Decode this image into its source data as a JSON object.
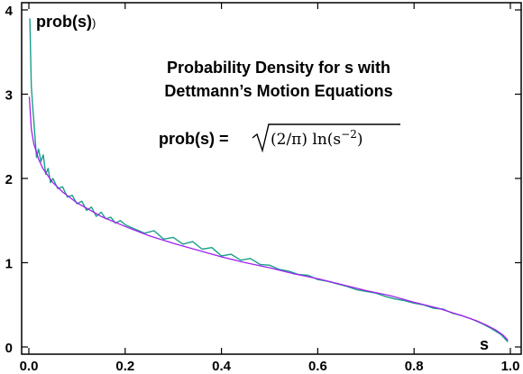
{
  "chart_data": {
    "type": "line",
    "title_lines": [
      "Probability Density for s with",
      "Dettmann’s Motion Equations"
    ],
    "formula": {
      "lhs": "prob(s) =",
      "radicand": "(2/π) ln(s",
      "exponent": "−2",
      "close": ")"
    },
    "ylabel": "prob(s)",
    "ylabel_end": ")",
    "xlabel": "s",
    "xlim": [
      0.0,
      1.0
    ],
    "ylim": [
      0,
      4
    ],
    "x_ticks": [
      "0.0",
      "0.2",
      "0.4",
      "0.6",
      "0.8",
      "1.0"
    ],
    "y_ticks": [
      "0",
      "1",
      "2",
      "3",
      "4"
    ],
    "grid": false,
    "series": [
      {
        "kind": "analytic",
        "color": "#a020f0",
        "x": [
          0.001,
          0.005,
          0.01,
          0.02,
          0.03,
          0.05,
          0.07,
          0.1,
          0.15,
          0.2,
          0.25,
          0.3,
          0.35,
          0.4,
          0.45,
          0.5,
          0.55,
          0.6,
          0.65,
          0.7,
          0.75,
          0.8,
          0.85,
          0.9,
          0.93,
          0.95,
          0.97,
          0.985,
          0.995
        ],
        "y": [
          2.97,
          2.59,
          2.42,
          2.23,
          2.11,
          1.95,
          1.84,
          1.71,
          1.55,
          1.43,
          1.32,
          1.23,
          1.15,
          1.07,
          1.0,
          0.94,
          0.87,
          0.81,
          0.74,
          0.67,
          0.61,
          0.53,
          0.46,
          0.37,
          0.31,
          0.26,
          0.2,
          0.14,
          0.08
        ]
      },
      {
        "kind": "simulated",
        "color": "#1a9e8a",
        "x": [
          0.002,
          0.005,
          0.008,
          0.012,
          0.016,
          0.02,
          0.025,
          0.03,
          0.035,
          0.04,
          0.045,
          0.05,
          0.06,
          0.07,
          0.08,
          0.09,
          0.1,
          0.11,
          0.12,
          0.13,
          0.14,
          0.15,
          0.16,
          0.17,
          0.18,
          0.19,
          0.2,
          0.22,
          0.24,
          0.26,
          0.28,
          0.3,
          0.32,
          0.34,
          0.36,
          0.38,
          0.4,
          0.42,
          0.44,
          0.46,
          0.48,
          0.5,
          0.52,
          0.54,
          0.56,
          0.58,
          0.6,
          0.62,
          0.64,
          0.66,
          0.68,
          0.7,
          0.72,
          0.74,
          0.76,
          0.78,
          0.8,
          0.82,
          0.84,
          0.86,
          0.88,
          0.9,
          0.92,
          0.94,
          0.96,
          0.98,
          0.995
        ],
        "y": [
          3.9,
          3.1,
          2.85,
          2.55,
          2.25,
          2.35,
          2.2,
          2.28,
          2.05,
          2.12,
          1.95,
          2.0,
          1.88,
          1.9,
          1.78,
          1.8,
          1.7,
          1.73,
          1.62,
          1.66,
          1.55,
          1.6,
          1.52,
          1.54,
          1.47,
          1.5,
          1.45,
          1.4,
          1.35,
          1.38,
          1.28,
          1.3,
          1.22,
          1.25,
          1.16,
          1.18,
          1.08,
          1.1,
          1.03,
          1.05,
          0.98,
          0.97,
          0.92,
          0.9,
          0.86,
          0.85,
          0.8,
          0.78,
          0.75,
          0.72,
          0.68,
          0.66,
          0.64,
          0.6,
          0.57,
          0.55,
          0.52,
          0.5,
          0.46,
          0.45,
          0.4,
          0.37,
          0.33,
          0.28,
          0.22,
          0.15,
          0.06
        ]
      }
    ]
  }
}
